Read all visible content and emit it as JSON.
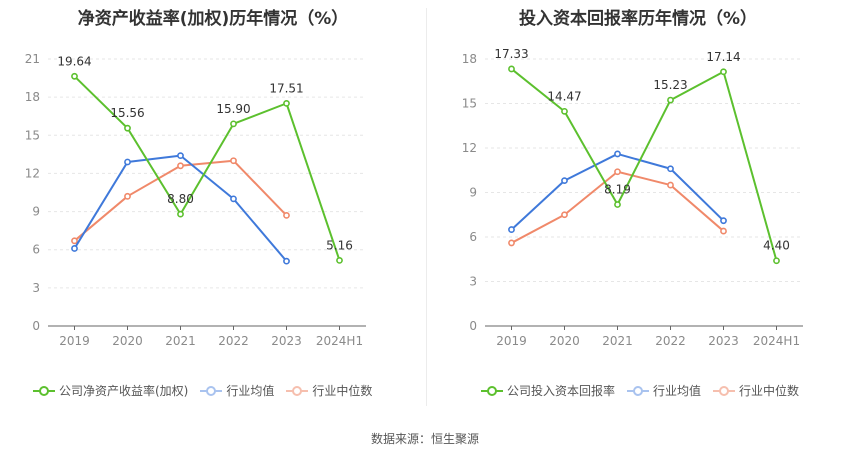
{
  "chart_data": [
    {
      "type": "line",
      "title": "净资产收益率(加权)历年情况（%）",
      "categories": [
        "2019",
        "2020",
        "2021",
        "2022",
        "2023",
        "2024H1"
      ],
      "ylim": [
        0,
        21
      ],
      "yticks": [
        "0",
        "3",
        "6",
        "9",
        "12",
        "15",
        "18",
        "21"
      ],
      "grid": true,
      "legend_position": "bottom",
      "series": [
        {
          "name": "公司净资产收益率(加权)",
          "color": "#5cc02e",
          "values": [
            19.64,
            15.56,
            8.8,
            15.9,
            17.51,
            5.16
          ],
          "labels": [
            "19.64",
            "15.56",
            "8.80",
            "15.90",
            "17.51",
            "5.16"
          ]
        },
        {
          "name": "行业均值",
          "color": "#3f79da",
          "values": [
            6.1,
            12.9,
            13.4,
            10.0,
            5.1,
            null
          ]
        },
        {
          "name": "行业中位数",
          "color": "#f0896a",
          "values": [
            6.7,
            10.2,
            12.6,
            13.0,
            8.7,
            null
          ]
        }
      ]
    },
    {
      "type": "line",
      "title": "投入资本回报率历年情况（%）",
      "categories": [
        "2019",
        "2020",
        "2021",
        "2022",
        "2023",
        "2024H1"
      ],
      "ylim": [
        0,
        18
      ],
      "yticks": [
        "0",
        "3",
        "6",
        "9",
        "12",
        "15",
        "18"
      ],
      "grid": true,
      "legend_position": "bottom",
      "series": [
        {
          "name": "公司投入资本回报率",
          "color": "#5cc02e",
          "values": [
            17.33,
            14.47,
            8.19,
            15.23,
            17.14,
            4.4
          ],
          "labels": [
            "17.33",
            "14.47",
            "8.19",
            "15.23",
            "17.14",
            "4.40"
          ]
        },
        {
          "name": "行业均值",
          "color": "#3f79da",
          "values": [
            6.5,
            9.8,
            11.6,
            10.6,
            7.1,
            null
          ]
        },
        {
          "name": "行业中位数",
          "color": "#f0896a",
          "values": [
            5.6,
            7.5,
            10.4,
            9.5,
            6.4,
            null
          ]
        }
      ]
    }
  ],
  "footer": {
    "source": "数据来源：恒生聚源"
  }
}
